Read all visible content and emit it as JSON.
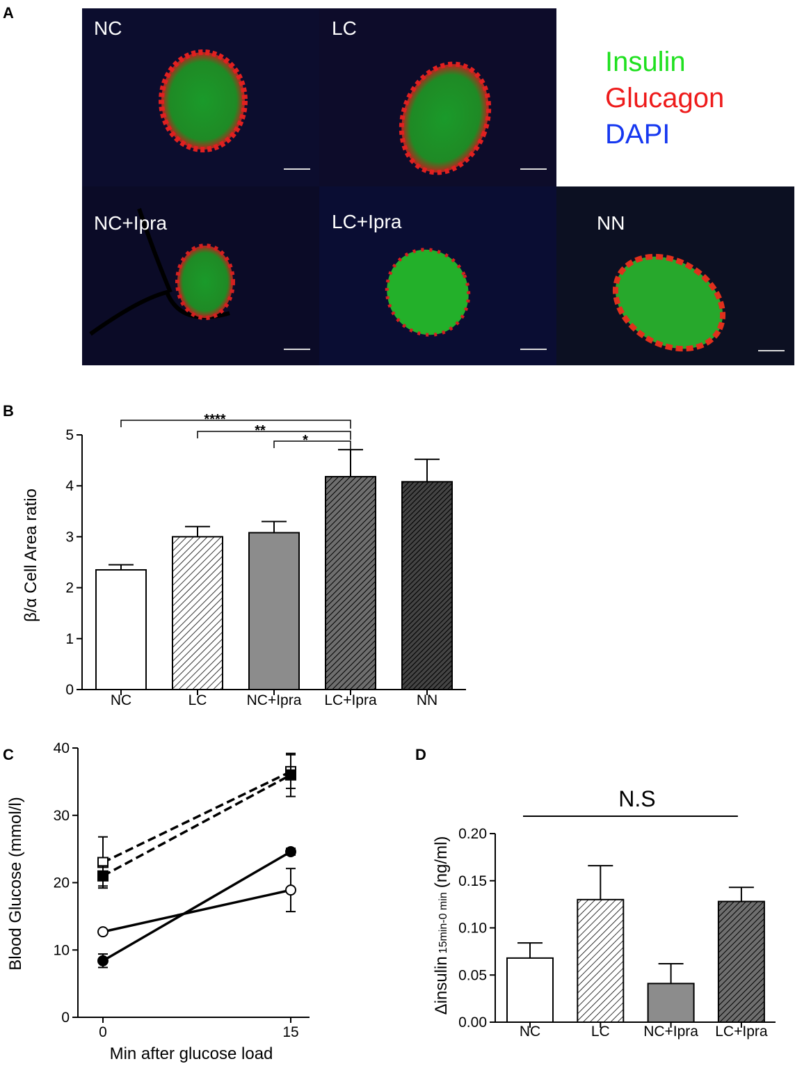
{
  "panel_labels": [
    "A",
    "B",
    "C",
    "D"
  ],
  "images": {
    "labels": [
      "NC",
      "LC",
      "NC+Ipra",
      "LC+Ipra",
      "NN"
    ],
    "legend": [
      {
        "name": "Insulin",
        "color": "#1fe01f"
      },
      {
        "name": "Glucagon",
        "color": "#ee1b1b"
      },
      {
        "name": "DAPI",
        "color": "#1537f0"
      }
    ]
  },
  "chart_data": [
    {
      "type": "bar",
      "ylabel": "β/α Cell Area ratio",
      "categories": [
        "NC",
        "LC",
        "NC+Ipra",
        "LC+Ipra",
        "NN"
      ],
      "values": [
        2.35,
        3.0,
        3.08,
        4.18,
        4.08
      ],
      "errors": [
        0.1,
        0.2,
        0.22,
        0.53,
        0.44
      ],
      "patterns": [
        "white",
        "hatch",
        "grey",
        "dark-hatch",
        "darker-hatch"
      ],
      "ylim": [
        0,
        5
      ],
      "yticks": [
        0,
        1,
        2,
        3,
        4,
        5
      ],
      "annotations": [
        {
          "text": "****",
          "between": [
            "NC",
            "LC+Ipra"
          ]
        },
        {
          "text": "**",
          "between": [
            "LC",
            "LC+Ipra"
          ]
        },
        {
          "text": "*",
          "between": [
            "NC+Ipra",
            "LC+Ipra"
          ]
        }
      ]
    },
    {
      "type": "line",
      "xlabel": "Min after glucose load",
      "ylabel": "Blood Glucose (mmol/l)",
      "x": [
        0,
        15
      ],
      "xlim": [
        -2,
        16.5
      ],
      "ylim": [
        0,
        40
      ],
      "xticks": [
        0,
        15
      ],
      "yticks": [
        0,
        10,
        20,
        30,
        40
      ],
      "series": [
        {
          "values": [
            23,
            36.5
          ],
          "errors": [
            3.8,
            2.5
          ],
          "marker": "square",
          "filled": false,
          "dashed": true
        },
        {
          "values": [
            21,
            36
          ],
          "errors": [
            1.5,
            3.2
          ],
          "marker": "square",
          "filled": true,
          "dashed": true
        },
        {
          "values": [
            12.7,
            18.9
          ],
          "errors": [
            0.3,
            3.2
          ],
          "marker": "circle",
          "filled": false,
          "dashed": false
        },
        {
          "values": [
            8.4,
            24.6
          ],
          "errors": [
            1,
            0.5
          ],
          "marker": "circle",
          "filled": true,
          "dashed": false
        }
      ]
    },
    {
      "type": "bar",
      "ylabel": "Δinsulin",
      "ylabel_sub": "15min-0 min",
      "ylabel_unit": "(ng/ml)",
      "categories": [
        "NC",
        "LC",
        "NC+Ipra",
        "LC+Ipra"
      ],
      "values": [
        0.068,
        0.13,
        0.041,
        0.128
      ],
      "errors": [
        0.016,
        0.036,
        0.021,
        0.015
      ],
      "patterns": [
        "white",
        "hatch",
        "grey",
        "dark-hatch"
      ],
      "ylim": [
        0,
        0.2
      ],
      "yticks": [
        {
          "value": 0,
          "label": "0.00"
        },
        {
          "value": 0.05,
          "label": "0.05"
        },
        {
          "value": 0.1,
          "label": "0.10"
        },
        {
          "value": 0.15,
          "label": "0.15"
        },
        {
          "value": 0.2,
          "label": "0.20"
        }
      ],
      "annotations": [
        {
          "text": "N.S",
          "between": [
            "NC",
            "LC+Ipra"
          ]
        }
      ]
    }
  ]
}
